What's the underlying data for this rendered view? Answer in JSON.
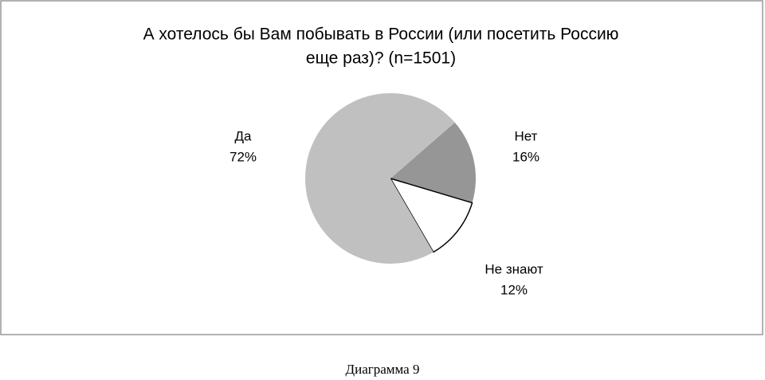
{
  "chart_data": {
    "type": "pie",
    "title": [
      "А хотелось бы Вам побывать в России (или посетить Россию",
      "еще раз)? (n=1501)"
    ],
    "categories": [
      "Нет",
      "Не знают",
      "Да"
    ],
    "values": [
      16,
      12,
      72
    ],
    "value_labels": [
      "16%",
      "12%",
      "72%"
    ],
    "colors": [
      "#969696",
      "#ffffff",
      "#c0c0c0"
    ]
  },
  "caption": "Диаграмма 9"
}
